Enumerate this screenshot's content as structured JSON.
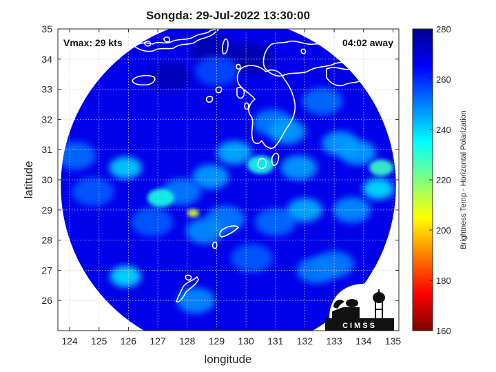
{
  "chart_data": {
    "type": "heatmap",
    "title": "Songda: 29-Jul-2022 13:30:00",
    "xlabel": "longitude",
    "ylabel": "latitude",
    "xlim": [
      123.6,
      135.2
    ],
    "ylim": [
      25.0,
      35.0
    ],
    "xticks": [
      "124",
      "125",
      "126",
      "127",
      "128",
      "129",
      "130",
      "131",
      "132",
      "133",
      "134",
      "135"
    ],
    "yticks": [
      "26",
      "27",
      "28",
      "29",
      "30",
      "31",
      "32",
      "33",
      "34",
      "35"
    ],
    "grid": true,
    "swath_center": [
      129.4,
      29.8
    ],
    "swath_radius_deg": 5.7,
    "background_value": 268,
    "features": [
      {
        "lon": 128.2,
        "lat": 28.9,
        "value": 210
      },
      {
        "lon": 130.5,
        "lat": 30.5,
        "value": 232
      },
      {
        "lon": 134.6,
        "lat": 30.4,
        "value": 228
      },
      {
        "lon": 134.5,
        "lat": 29.7,
        "value": 238
      },
      {
        "lon": 127.1,
        "lat": 29.4,
        "value": 232
      },
      {
        "lon": 125.9,
        "lat": 30.4,
        "value": 240
      },
      {
        "lon": 125.9,
        "lat": 26.8,
        "value": 238
      },
      {
        "lon": 128.8,
        "lat": 30.1,
        "value": 246
      },
      {
        "lon": 129.6,
        "lat": 30.9,
        "value": 244
      },
      {
        "lon": 131.8,
        "lat": 30.4,
        "value": 246
      },
      {
        "lon": 131.4,
        "lat": 31.6,
        "value": 246
      },
      {
        "lon": 132.0,
        "lat": 29.0,
        "value": 244
      },
      {
        "lon": 133.2,
        "lat": 31.2,
        "value": 246
      },
      {
        "lon": 133.8,
        "lat": 30.9,
        "value": 246
      },
      {
        "lon": 133.6,
        "lat": 29.0,
        "value": 248
      },
      {
        "lon": 128.6,
        "lat": 28.3,
        "value": 248
      },
      {
        "lon": 127.8,
        "lat": 29.6,
        "value": 250
      },
      {
        "lon": 129.3,
        "lat": 28.7,
        "value": 250
      },
      {
        "lon": 130.9,
        "lat": 31.9,
        "value": 250
      },
      {
        "lon": 132.4,
        "lat": 27.0,
        "value": 250
      },
      {
        "lon": 133.0,
        "lat": 27.2,
        "value": 250
      },
      {
        "lon": 128.3,
        "lat": 26.0,
        "value": 248
      },
      {
        "lon": 126.8,
        "lat": 28.6,
        "value": 254
      },
      {
        "lon": 130.2,
        "lat": 27.4,
        "value": 254
      },
      {
        "lon": 131.0,
        "lat": 28.6,
        "value": 252
      },
      {
        "lon": 132.6,
        "lat": 32.6,
        "value": 252
      },
      {
        "lon": 124.8,
        "lat": 29.6,
        "value": 254
      },
      {
        "lon": 124.2,
        "lat": 30.8,
        "value": 252
      },
      {
        "lon": 129.0,
        "lat": 33.6,
        "value": 256
      },
      {
        "lon": 130.2,
        "lat": 34.0,
        "value": 277
      },
      {
        "lon": 128.9,
        "lat": 34.3,
        "value": 276
      },
      {
        "lon": 127.4,
        "lat": 33.4,
        "value": 275
      }
    ],
    "colorbar": {
      "min": 160,
      "max": 280,
      "ticks": [
        "160",
        "180",
        "200",
        "220",
        "240",
        "260",
        "280"
      ],
      "label": "Brightness Temp - Horizontal Polarization",
      "colormap": [
        "#7f0000",
        "#ff0000",
        "#ff7f00",
        "#ffff00",
        "#7fff7f",
        "#00ffff",
        "#007fff",
        "#0000ff",
        "#00008f"
      ]
    },
    "annotations": {
      "vmax": "Vmax: 29 kts",
      "time_away": "04:02 away"
    },
    "logo_text": "CIMSS"
  }
}
